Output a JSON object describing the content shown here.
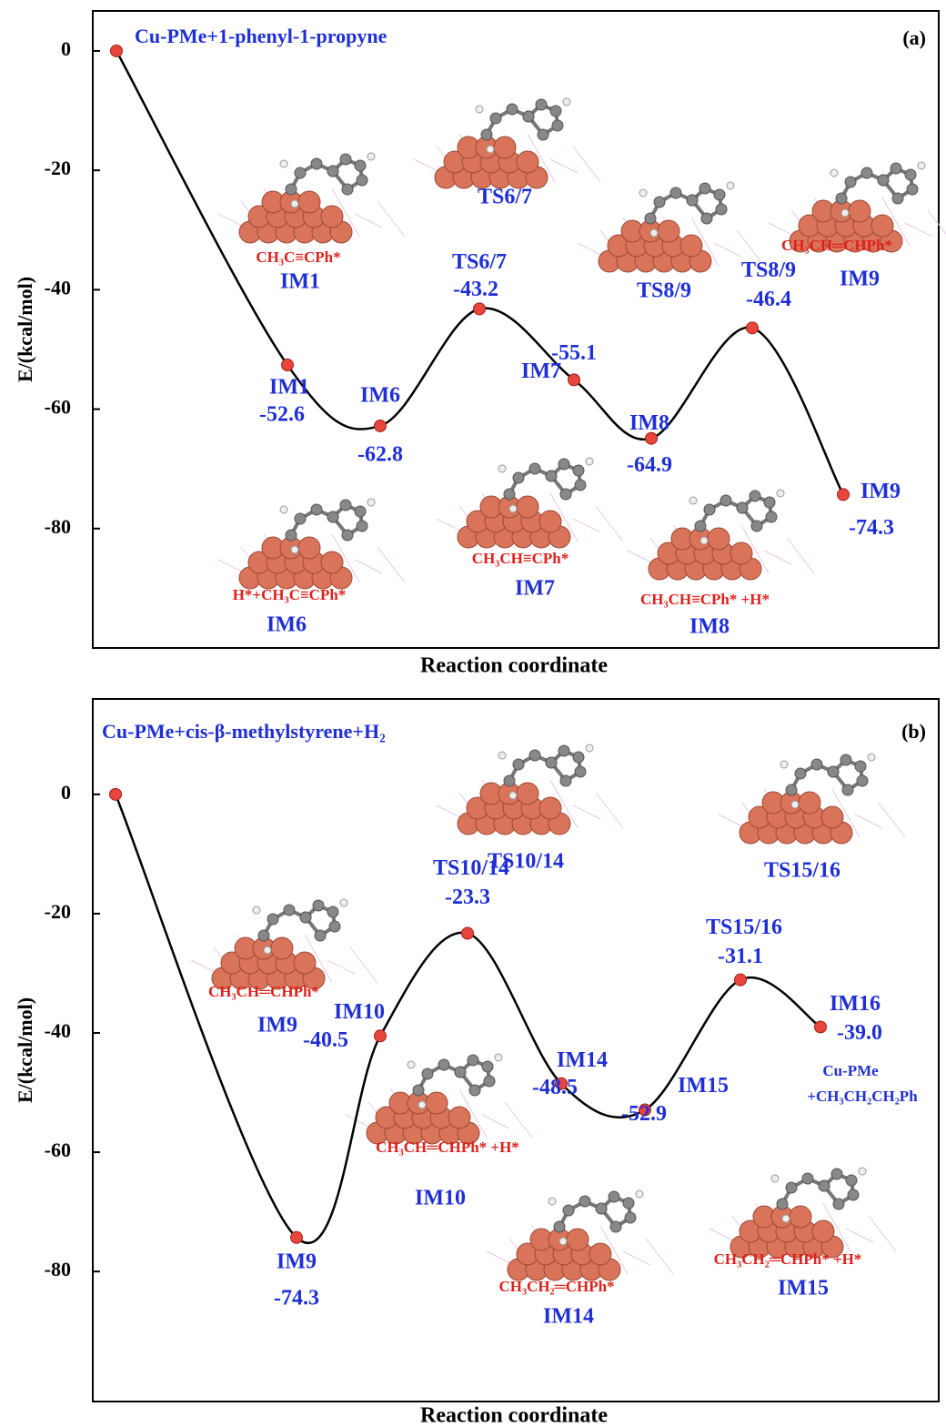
{
  "chart_data": [
    {
      "type": "line",
      "title": "Cu-PMe+1-phenyl-1-propyne",
      "panel_label": "(a)",
      "x_label": "Reaction coordinate",
      "y_label": "E/(kcal/mol)",
      "categories": [
        null,
        "IM1",
        "IM6",
        "TS6/7",
        "IM7",
        "IM8",
        "TS8/9",
        "IM9"
      ],
      "values": [
        0,
        -52.6,
        -62.8,
        -43.2,
        -55.1,
        -64.9,
        -46.4,
        -74.3
      ],
      "color": "#000000",
      "marker_color": "#e8463c",
      "label_color": "#1f2fd6",
      "formula_color": "#e0201b",
      "ylim": [
        -100,
        6.7
      ],
      "yticks": [
        0,
        -20,
        -40,
        -60,
        -80
      ],
      "insets": [
        {
          "label": "IM1",
          "formula": "CH₃C≡CPh*"
        },
        {
          "label": "TS6/7"
        },
        {
          "label": "TS8/9"
        },
        {
          "label": "IM9",
          "formula": "CH₃CH═CHPh*"
        },
        {
          "label": "IM6",
          "formula": "H*+CH₃C≡CPh*"
        },
        {
          "label": "IM7",
          "formula": "CH₃CH≡CPh*"
        },
        {
          "label": "IM8",
          "formula": "CH₃CH≡CPh* +H*"
        }
      ]
    },
    {
      "type": "line",
      "title": "Cu-PMe+cis-β-methylstyrene+H₂",
      "panel_label": "(b)",
      "x_label": "Reaction coordinate",
      "y_label": "E/(kcal/mol)",
      "categories": [
        null,
        "IM9",
        "IM10",
        "TS10/14",
        "IM14",
        "IM15",
        "TS15/16",
        "IM16"
      ],
      "values": [
        0,
        -74.3,
        -40.5,
        -23.3,
        -48.5,
        -52.9,
        -31.1,
        -39
      ],
      "value_labels": [
        null,
        "-74.3",
        "-40.5",
        "-23.3",
        "-48.5",
        "-52.9",
        "-31.1",
        "-39.0"
      ],
      "color": "#000000",
      "marker_color": "#e8463c",
      "label_color": "#1f2fd6",
      "formula_color": "#e0201b",
      "ylim": [
        -101.8,
        16
      ],
      "yticks": [
        0,
        -20,
        -40,
        -60,
        -80
      ],
      "notes": [
        "Cu-PMe",
        "+CH₃CH₂CH₂Ph"
      ],
      "insets": [
        {
          "label": "TS10/14"
        },
        {
          "label": "TS15/16"
        },
        {
          "label": "IM9",
          "formula": "CH₃CH═CHPh*"
        },
        {
          "label": "IM10",
          "formula": "CH₃CH═CHPh* +H*"
        },
        {
          "label": "IM14",
          "formula": "CH₃CH₂═CHPh*"
        },
        {
          "label": "IM15",
          "formula": "CH₃CH₂═CHPh* +H*"
        }
      ]
    }
  ]
}
